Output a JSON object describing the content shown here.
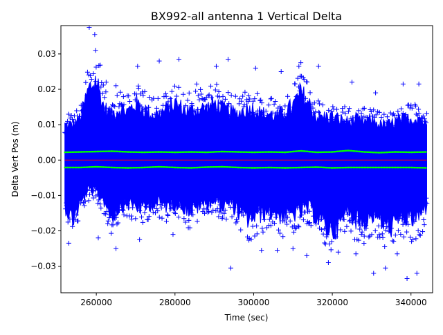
{
  "chart_data": {
    "type": "scatter",
    "title": "BX992-all antenna 1 Vertical Delta",
    "xlabel": "Time (sec)",
    "ylabel": "Delta Vert Pos (m)",
    "xlim": [
      251000,
      345500
    ],
    "ylim": [
      -0.0375,
      0.038
    ],
    "xticks": [
      260000,
      280000,
      300000,
      320000,
      340000
    ],
    "xtick_labels": [
      "260000",
      "280000",
      "300000",
      "320000",
      "340000"
    ],
    "yticks": [
      -0.03,
      -0.02,
      -0.01,
      0.0,
      0.01,
      0.02,
      0.03
    ],
    "ytick_labels": [
      "−0.03",
      "−0.02",
      "−0.01",
      "0.00",
      "0.01",
      "0.02",
      "0.03"
    ],
    "grid": false,
    "x_start": 252000,
    "x_end": 344000,
    "series": [
      {
        "marker": "+",
        "color": "#0000ff",
        "envelope": {
          "x": [
            252000,
            254000,
            256000,
            258000,
            260000,
            262000,
            264000,
            266000,
            268000,
            270000,
            272000,
            274000,
            276000,
            278000,
            280000,
            282000,
            284000,
            286000,
            288000,
            290000,
            292000,
            294000,
            296000,
            298000,
            300000,
            302000,
            304000,
            306000,
            308000,
            310000,
            312000,
            314000,
            316000,
            318000,
            320000,
            322000,
            324000,
            326000,
            328000,
            330000,
            332000,
            334000,
            336000,
            338000,
            340000,
            342000,
            344000
          ],
          "y_upper": [
            0.013,
            0.013,
            0.016,
            0.026,
            0.03,
            0.019,
            0.017,
            0.019,
            0.018,
            0.021,
            0.019,
            0.017,
            0.017,
            0.019,
            0.021,
            0.019,
            0.018,
            0.019,
            0.019,
            0.021,
            0.019,
            0.018,
            0.017,
            0.019,
            0.019,
            0.017,
            0.017,
            0.016,
            0.018,
            0.02,
            0.025,
            0.021,
            0.016,
            0.016,
            0.016,
            0.015,
            0.014,
            0.015,
            0.014,
            0.015,
            0.013,
            0.013,
            0.014,
            0.015,
            0.015,
            0.016,
            0.013
          ],
          "y_lower": [
            -0.017,
            -0.022,
            -0.016,
            -0.011,
            -0.012,
            -0.015,
            -0.021,
            -0.017,
            -0.016,
            -0.017,
            -0.018,
            -0.016,
            -0.016,
            -0.017,
            -0.016,
            -0.017,
            -0.019,
            -0.017,
            -0.016,
            -0.015,
            -0.017,
            -0.016,
            -0.019,
            -0.022,
            -0.021,
            -0.02,
            -0.019,
            -0.02,
            -0.021,
            -0.02,
            -0.019,
            -0.018,
            -0.021,
            -0.024,
            -0.026,
            -0.024,
            -0.018,
            -0.022,
            -0.023,
            -0.02,
            -0.022,
            -0.025,
            -0.024,
            -0.021,
            -0.022,
            -0.021,
            -0.017
          ]
        },
        "outliers": [
          [
            258200,
            0.0375
          ],
          [
            259600,
            0.0355
          ],
          [
            259800,
            0.031
          ],
          [
            262500,
            0.022
          ],
          [
            265000,
            0.021
          ],
          [
            270500,
            0.0265
          ],
          [
            276000,
            0.028
          ],
          [
            281000,
            0.0285
          ],
          [
            285500,
            0.0215
          ],
          [
            290500,
            0.0265
          ],
          [
            293500,
            0.0285
          ],
          [
            300500,
            0.026
          ],
          [
            307000,
            0.025
          ],
          [
            311500,
            0.0265
          ],
          [
            312000,
            0.0275
          ],
          [
            316500,
            0.0265
          ],
          [
            325000,
            0.022
          ],
          [
            331000,
            0.019
          ],
          [
            338000,
            0.0215
          ],
          [
            342000,
            0.0215
          ],
          [
            253000,
            -0.0235
          ],
          [
            260500,
            -0.022
          ],
          [
            265000,
            -0.025
          ],
          [
            271000,
            -0.0225
          ],
          [
            279500,
            -0.021
          ],
          [
            294200,
            -0.0305
          ],
          [
            302000,
            -0.0255
          ],
          [
            306000,
            -0.0255
          ],
          [
            310000,
            -0.025
          ],
          [
            313500,
            -0.027
          ],
          [
            319000,
            -0.029
          ],
          [
            321500,
            -0.026
          ],
          [
            326000,
            -0.0265
          ],
          [
            330500,
            -0.032
          ],
          [
            333500,
            -0.0305
          ],
          [
            339000,
            -0.0335
          ],
          [
            341500,
            -0.032
          ],
          [
            336500,
            -0.0265
          ]
        ]
      },
      {
        "marker": "dot",
        "color": "#00ff00",
        "x": [
          252000,
          256000,
          260000,
          264000,
          268000,
          272000,
          276000,
          280000,
          284000,
          288000,
          292000,
          296000,
          300000,
          304000,
          308000,
          312000,
          316000,
          320000,
          324000,
          328000,
          332000,
          336000,
          340000,
          344000
        ],
        "y": [
          0.0022,
          0.0023,
          0.0024,
          0.0025,
          0.0023,
          0.0022,
          0.0023,
          0.0022,
          0.0023,
          0.0022,
          0.0024,
          0.0023,
          0.0022,
          0.0023,
          0.0022,
          0.0026,
          0.0022,
          0.0023,
          0.0027,
          0.0023,
          0.0021,
          0.0023,
          0.0022,
          0.0023
        ]
      },
      {
        "marker": "dot",
        "color": "#00ff00",
        "x": [
          252000,
          256000,
          260000,
          264000,
          268000,
          272000,
          276000,
          280000,
          284000,
          288000,
          292000,
          296000,
          300000,
          304000,
          308000,
          312000,
          316000,
          320000,
          324000,
          328000,
          332000,
          336000,
          340000,
          344000
        ],
        "y": [
          -0.0021,
          -0.0021,
          -0.0019,
          -0.0021,
          -0.0022,
          -0.0021,
          -0.0019,
          -0.0021,
          -0.0022,
          -0.002,
          -0.0019,
          -0.0021,
          -0.0022,
          -0.0021,
          -0.0022,
          -0.0021,
          -0.002,
          -0.0022,
          -0.0021,
          -0.0021,
          -0.0021,
          -0.0021,
          -0.0021,
          -0.0022
        ]
      },
      {
        "marker": "line",
        "color": "#ff0000",
        "x": [
          252000,
          344000
        ],
        "y": [
          0.0,
          0.0
        ]
      }
    ]
  }
}
